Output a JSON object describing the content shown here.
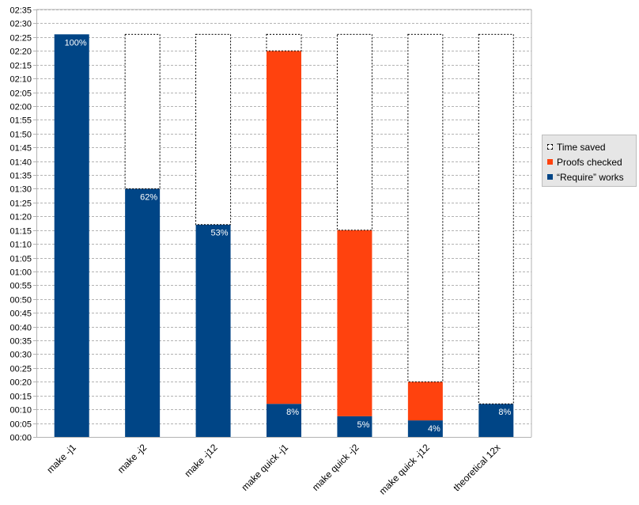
{
  "chart_data": {
    "type": "bar",
    "stacked": true,
    "categories": [
      "make -j1",
      "make -j2",
      "make -j12",
      "make quick -j1",
      "make quick -j2",
      "make quick -j12",
      "theoretical 12x"
    ],
    "y_unit": "minutes",
    "ylim": [
      0,
      155
    ],
    "y_ticks": [
      "00:00",
      "00:05",
      "00:10",
      "00:15",
      "00:20",
      "00:25",
      "00:30",
      "00:35",
      "00:40",
      "00:45",
      "00:50",
      "00:55",
      "01:00",
      "01:05",
      "01:10",
      "01:15",
      "01:20",
      "01:25",
      "01:30",
      "01:35",
      "01:40",
      "01:45",
      "01:50",
      "01:55",
      "02:00",
      "02:05",
      "02:10",
      "02:15",
      "02:20",
      "02:25",
      "02:30",
      "02:35"
    ],
    "grid": true,
    "legend_position": "right",
    "series": [
      {
        "name": "“Require” works",
        "color": "#004586",
        "values": [
          146,
          90,
          77,
          12,
          7.5,
          6,
          12
        ]
      },
      {
        "name": "Proofs checked",
        "color": "#ff420e",
        "values": [
          0,
          0,
          0,
          128,
          67.5,
          14,
          0
        ]
      },
      {
        "name": "Time saved",
        "color": "#ffffff",
        "style": "dashed-outline",
        "values": [
          0,
          56,
          69,
          6,
          71,
          126,
          134
        ]
      }
    ],
    "data_labels": [
      "100%",
      "62%",
      "53%",
      "8%",
      "5%",
      "4%",
      "8%"
    ]
  }
}
